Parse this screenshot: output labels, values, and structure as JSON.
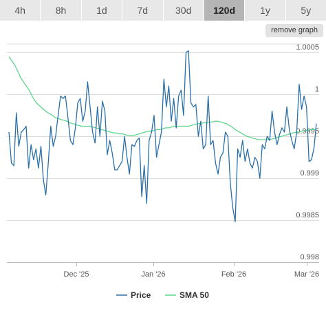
{
  "ranges": [
    "4h",
    "8h",
    "1d",
    "7d",
    "30d",
    "120d",
    "1y",
    "5y"
  ],
  "active_range": "120d",
  "remove_graph_label": "remove graph",
  "colors": {
    "price": "#2a6fa8",
    "sma": "#5dd68a",
    "grid": "#dedede",
    "axis": "#bcbcbc"
  },
  "chart_data": {
    "type": "line",
    "x_ticks": [
      "Dec '25",
      "Jan '26",
      "Feb '26",
      "Mar '26"
    ],
    "y_ticks": [
      0.998,
      0.9985,
      0.999,
      0.9995,
      1,
      1.0005
    ],
    "y_tick_labels": [
      "0.998",
      "0.9985",
      "0.999",
      "0.9995",
      "1",
      "1.0005"
    ],
    "ylim": [
      0.998,
      1.0006
    ],
    "series": [
      {
        "name": "Price",
        "color": "#2a6fa8",
        "values": [
          0.99955,
          0.99918,
          0.99915,
          0.99978,
          0.99938,
          0.99955,
          0.99958,
          0.99962,
          0.99912,
          0.9994,
          0.99922,
          0.99935,
          0.99912,
          0.99938,
          0.99898,
          0.9988,
          0.99918,
          0.99962,
          0.99938,
          0.9995,
          0.99975,
          0.99998,
          0.99995,
          0.99998,
          0.99972,
          0.99945,
          0.9994,
          0.9996,
          0.9999,
          0.99995,
          0.99968,
          0.9998,
          1.00015,
          0.99985,
          0.99955,
          0.99942,
          0.99985,
          0.9995,
          0.99992,
          0.9998,
          0.99928,
          0.99945,
          0.9993,
          0.9991,
          0.9991,
          0.99915,
          0.9992,
          0.9995,
          0.99925,
          0.99905,
          0.9994,
          0.99938,
          0.99945,
          0.99948,
          0.99878,
          0.99915,
          0.9987,
          0.99945,
          0.99955,
          0.99975,
          0.99925,
          0.9994,
          0.99955,
          1.00018,
          0.99985,
          1.0001,
          0.99968,
          0.99995,
          0.9996,
          0.99998,
          1.00005,
          0.99975,
          1.0005,
          1.00052,
          0.9999,
          0.99985,
          0.99988,
          0.9995,
          0.99968,
          0.99935,
          0.9994,
          0.99998,
          0.9994,
          0.99945,
          0.99918,
          0.99905,
          0.99925,
          0.9993,
          0.99955,
          0.9995,
          0.99895,
          0.99865,
          0.99848,
          0.99935,
          0.99925,
          0.99945,
          0.9992,
          0.99935,
          0.99918,
          0.99912,
          0.99925,
          0.9992,
          0.999,
          0.9994,
          0.99935,
          0.9995,
          0.99945,
          0.9998,
          0.99955,
          0.9994,
          0.99952,
          0.9996,
          0.99955,
          0.99985,
          0.99958,
          0.99945,
          0.99935,
          0.99955,
          1.00012,
          0.99982,
          0.99998,
          0.99985,
          0.9992,
          0.99922,
          0.99935,
          0.99965
        ]
      },
      {
        "name": "SMA 50",
        "color": "#5dd68a",
        "values": [
          1.00045,
          1.0004,
          1.00035,
          1.00028,
          1.0002,
          1.00015,
          1.0001,
          1.00005,
          0.99998,
          0.99992,
          0.99988,
          0.99985,
          0.99982,
          0.99979,
          0.99977,
          0.99975,
          0.99972,
          0.99971,
          0.9997,
          0.99969,
          0.99968,
          0.99966,
          0.99965,
          0.99964,
          0.99963,
          0.99962,
          0.99962,
          0.99962,
          0.99962,
          0.99961,
          0.9996,
          0.99959,
          0.99958,
          0.99957,
          0.99956,
          0.99955,
          0.99954,
          0.99954,
          0.99953,
          0.99953,
          0.99952,
          0.99951,
          0.99951,
          0.99951,
          0.99952,
          0.99953,
          0.99954,
          0.99955,
          0.99956,
          0.99956,
          0.99957,
          0.99958,
          0.99958,
          0.99959,
          0.9996,
          0.9996,
          0.99961,
          0.99962,
          0.99962,
          0.99962,
          0.99962,
          0.99962,
          0.99962,
          0.99963,
          0.99964,
          0.99965,
          0.99965,
          0.99966,
          0.99966,
          0.99967,
          0.99967,
          0.99968,
          0.99968,
          0.99967,
          0.99966,
          0.99965,
          0.99963,
          0.99961,
          0.99958,
          0.99956,
          0.99954,
          0.99952,
          0.9995,
          0.99949,
          0.99948,
          0.99947,
          0.99946,
          0.99946,
          0.99946,
          0.99946,
          0.99946,
          0.99947,
          0.99948,
          0.99949,
          0.9995,
          0.99951,
          0.99952,
          0.99953,
          0.99954,
          0.99955,
          0.99955,
          0.99956,
          0.99957,
          0.99957,
          0.99958,
          0.99958,
          0.99958
        ]
      }
    ]
  }
}
